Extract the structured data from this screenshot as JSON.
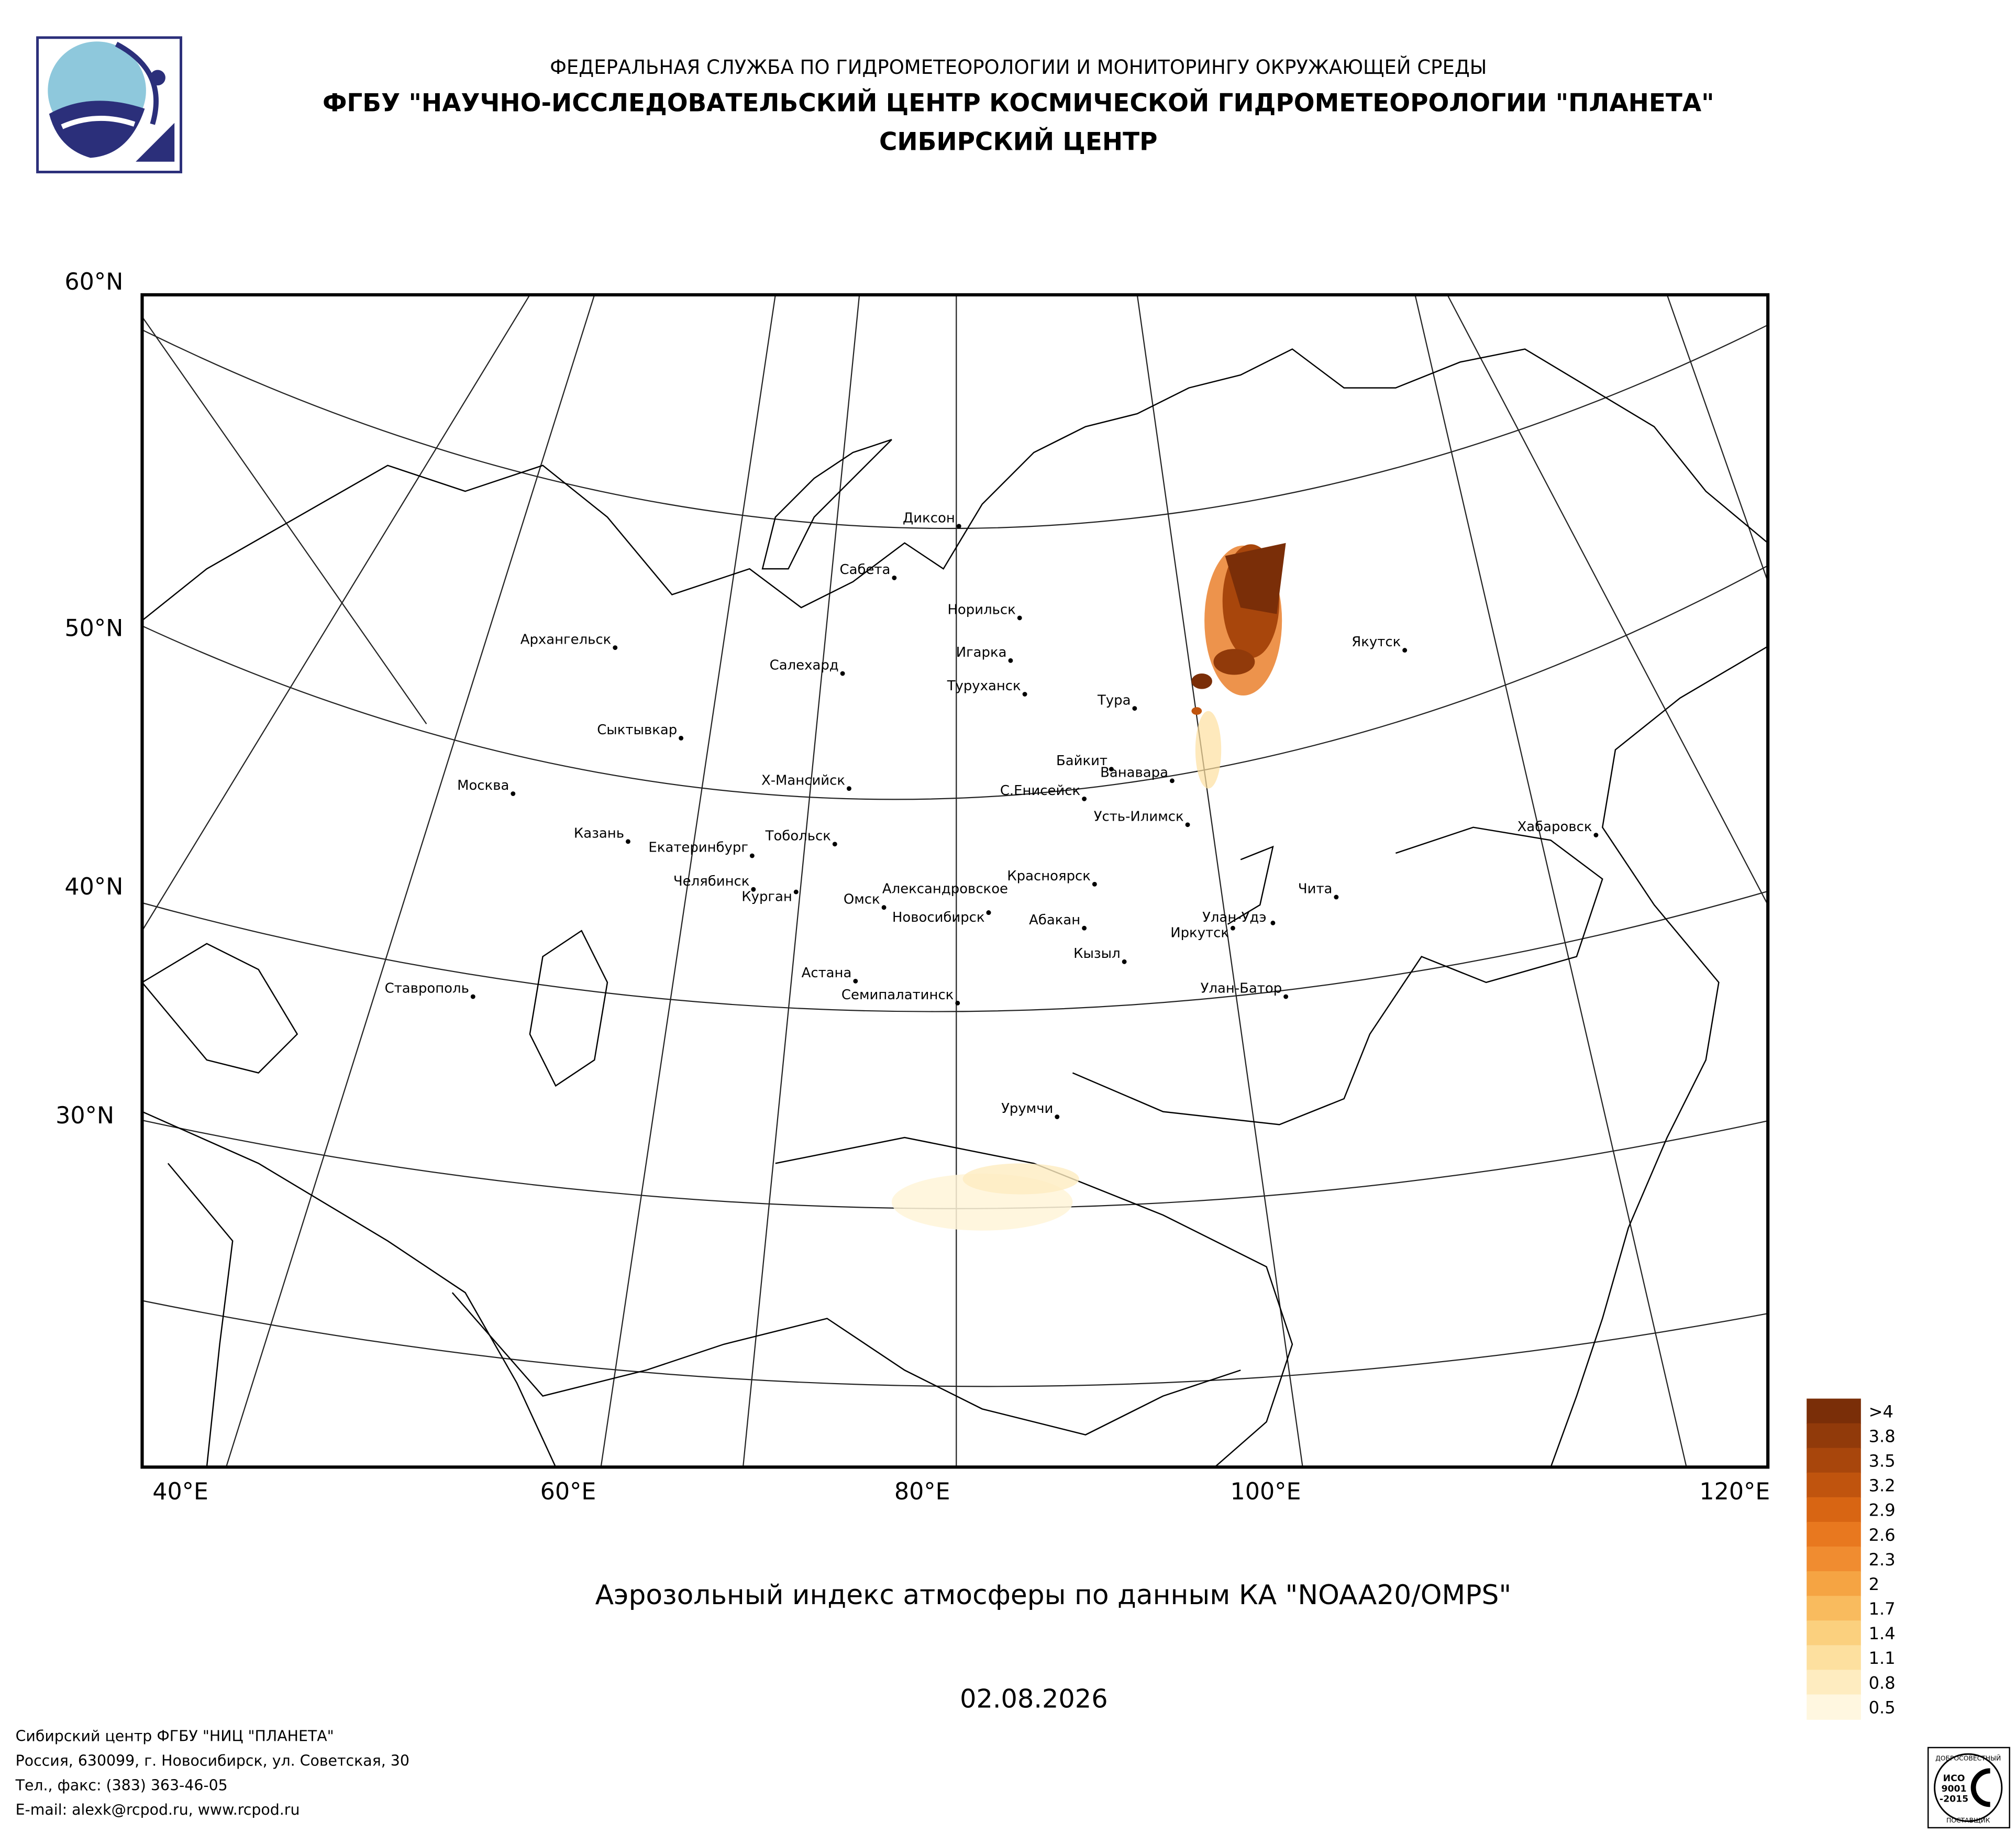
{
  "header": {
    "line1": "ФЕДЕРАЛЬНАЯ СЛУЖБА ПО ГИДРОМЕТЕОРОЛОГИИ И МОНИТОРИНГУ ОКРУЖАЮЩЕЙ СРЕДЫ",
    "line2": "ФГБУ \"НАУЧНО-ИССЛЕДОВАТЕЛЬСКИЙ ЦЕНТР КОСМИЧЕСКОЙ ГИДРОМЕТЕОРОЛОГИИ \"ПЛАНЕТА\"",
    "line3": "СИБИРСКИЙ ЦЕНТР"
  },
  "map": {
    "lat_labels": [
      "60°N",
      "50°N",
      "40°N",
      "30°N"
    ],
    "lon_labels": [
      "40°E",
      "60°E",
      "80°E",
      "100°E",
      "120°E"
    ],
    "cities": [
      "Диксон",
      "Сабета",
      "Норильск",
      "Игарка",
      "Салехард",
      "Туруханск",
      "Архангельск",
      "Якутск",
      "Тура",
      "Сыктывкар",
      "Байкит",
      "Ванавара",
      "Х-Мансийск",
      "С.Енисейск",
      "Москва",
      "Усть-Илимск",
      "Хабаровск",
      "Казань",
      "Тобольск",
      "Екатеринбург",
      "Красноярск",
      "Челябинск",
      "Курган",
      "Чита",
      "Александровское",
      "Омск",
      "Новосибирск",
      "Улан-Удэ",
      "Абакан",
      "Иркутск",
      "Кызыл",
      "Астана",
      "Ставрополь",
      "Улан-Батор",
      "Семипалатинск",
      "Урумчи"
    ]
  },
  "legend": [
    {
      "label": ">4",
      "color": "#7a2e08"
    },
    {
      "label": "3.8",
      "color": "#913a0a"
    },
    {
      "label": "3.5",
      "color": "#a8460c"
    },
    {
      "label": "3.2",
      "color": "#c0540e"
    },
    {
      "label": "2.9",
      "color": "#d86513"
    },
    {
      "label": "2.6",
      "color": "#e8781f"
    },
    {
      "label": "2.3",
      "color": "#f08c30"
    },
    {
      "label": "2",
      "color": "#f5a443"
    },
    {
      "label": "1.7",
      "color": "#f9bb5e"
    },
    {
      "label": "1.4",
      "color": "#fbd07e"
    },
    {
      "label": "1.1",
      "color": "#fde09f"
    },
    {
      "label": "0.8",
      "color": "#feecc0"
    },
    {
      "label": "0.5",
      "color": "#fff7e0"
    }
  ],
  "title": "Аэрозольный индекс атмосферы по данным КА \"NOAA20/OMPS\"",
  "date": "02.08.2026",
  "footer": [
    "Сибирский центр ФГБУ \"НИЦ \"ПЛАНЕТА\"",
    "Россия, 630099, г. Новосибирск, ул. Советская, 30",
    "Тел., факс: (383) 363-46-05",
    "E-mail: alexk@rcpod.ru, www.rcpod.ru"
  ],
  "badge": {
    "top": "ДОБРОСОВЕСТНЫЙ",
    "iso": "ИСО",
    "num": "9001",
    "year": "-2015",
    "bottom": "ПОСТАВЩИК"
  }
}
